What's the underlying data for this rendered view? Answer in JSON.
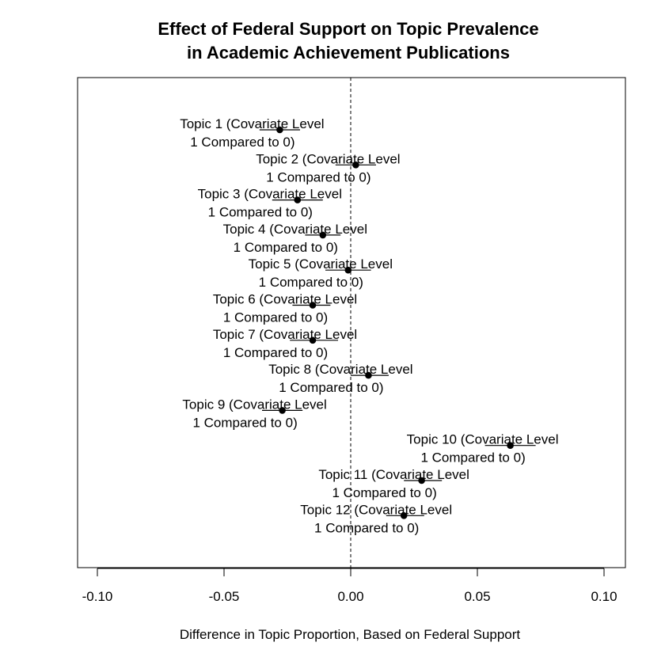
{
  "chart_data": {
    "type": "scatter",
    "title": [
      "Effect of Federal Support on Topic Prevalence",
      "in Academic Achievement Publications"
    ],
    "xlabel": "Difference in Topic Proportion, Based on Federal Support",
    "ylabel": "",
    "xlim": [
      -0.108,
      0.108
    ],
    "xticks": [
      -0.1,
      -0.05,
      0.0,
      0.05,
      0.1
    ],
    "xtick_labels": [
      "-0.10",
      "-0.05",
      "0.00",
      "0.05",
      "0.10"
    ],
    "reference_line": 0,
    "grid": false,
    "legend": "none",
    "points": [
      {
        "label_line1": "Topic 1 (Covariate Level",
        "label_line2": "1 Compared to 0)",
        "estimate": -0.028,
        "lower": -0.036,
        "upper": -0.02
      },
      {
        "label_line1": "Topic 2 (Covariate Level",
        "label_line2": "1 Compared to 0)",
        "estimate": 0.002,
        "lower": -0.006,
        "upper": 0.01
      },
      {
        "label_line1": "Topic 3 (Covariate Level",
        "label_line2": "1 Compared to 0)",
        "estimate": -0.021,
        "lower": -0.031,
        "upper": -0.011
      },
      {
        "label_line1": "Topic 4 (Covariate Level",
        "label_line2": "1 Compared to 0)",
        "estimate": -0.011,
        "lower": -0.018,
        "upper": -0.004
      },
      {
        "label_line1": "Topic 5 (Covariate Level",
        "label_line2": "1 Compared to 0)",
        "estimate": -0.001,
        "lower": -0.01,
        "upper": 0.008
      },
      {
        "label_line1": "Topic 6 (Covariate Level",
        "label_line2": "1 Compared to 0)",
        "estimate": -0.015,
        "lower": -0.023,
        "upper": -0.008
      },
      {
        "label_line1": "Topic 7 (Covariate Level",
        "label_line2": "1 Compared to 0)",
        "estimate": -0.015,
        "lower": -0.024,
        "upper": -0.005
      },
      {
        "label_line1": "Topic 8 (Covariate Level",
        "label_line2": "1 Compared to 0)",
        "estimate": 0.007,
        "lower": 0.0,
        "upper": 0.015
      },
      {
        "label_line1": "Topic 9 (Covariate Level",
        "label_line2": "1 Compared to 0)",
        "estimate": -0.027,
        "lower": -0.035,
        "upper": -0.019
      },
      {
        "label_line1": "Topic 10 (Covariate Level",
        "label_line2": "1 Compared to 0)",
        "estimate": 0.063,
        "lower": 0.053,
        "upper": 0.073
      },
      {
        "label_line1": "Topic 11 (Covariate Level",
        "label_line2": "1 Compared to 0)",
        "estimate": 0.028,
        "lower": 0.021,
        "upper": 0.036
      },
      {
        "label_line1": "Topic 12 (Covariate Level",
        "label_line2": "1 Compared to 0)",
        "estimate": 0.021,
        "lower": 0.014,
        "upper": 0.029
      }
    ],
    "colors": {
      "point": "#000000",
      "line": "#000000",
      "reference_line": "#000000",
      "frame": "#000000"
    }
  }
}
